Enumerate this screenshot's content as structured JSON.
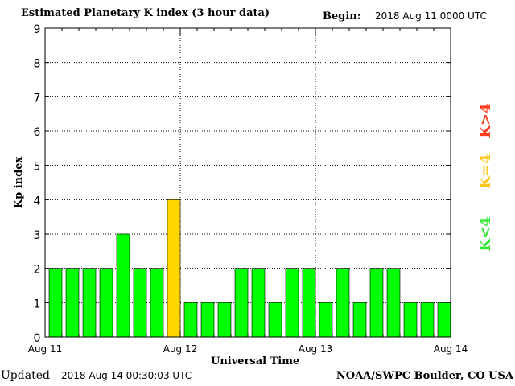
{
  "header": {
    "title": "Estimated Planetary K index (3 hour data)",
    "begin_label": "Begin:",
    "begin_value": "2018 Aug 11 0000 UTC"
  },
  "footer": {
    "updated_label": "Updated",
    "updated_value": "2018 Aug 14 00:30:03 UTC",
    "source": "NOAA/SWPC Boulder, CO USA"
  },
  "colors": {
    "below_4": "#00ff00",
    "equal_4": "#ffd700",
    "above_4": "#ff2020",
    "bar_outline": "#000000"
  },
  "legend": [
    {
      "label": "K<4",
      "color": "#2ee82e"
    },
    {
      "label": "K=4",
      "color": "#ffc81e"
    },
    {
      "label": "K>4",
      "color": "#ff3b1e"
    }
  ],
  "chart_data": {
    "type": "bar",
    "xlabel": "Universal Time",
    "ylabel": "Kp index",
    "ylim": [
      0,
      9
    ],
    "yticks": [
      "0",
      "1",
      "2",
      "3",
      "4",
      "5",
      "6",
      "7",
      "8",
      "9"
    ],
    "xticks": [
      "Aug 11",
      "Aug 12",
      "Aug 13",
      "Aug 14"
    ],
    "grid": "dotted",
    "values": [
      2,
      2,
      2,
      2,
      3,
      2,
      2,
      4,
      1,
      1,
      1,
      2,
      2,
      1,
      2,
      2,
      1,
      2,
      1,
      2,
      2,
      1,
      1,
      1
    ]
  }
}
